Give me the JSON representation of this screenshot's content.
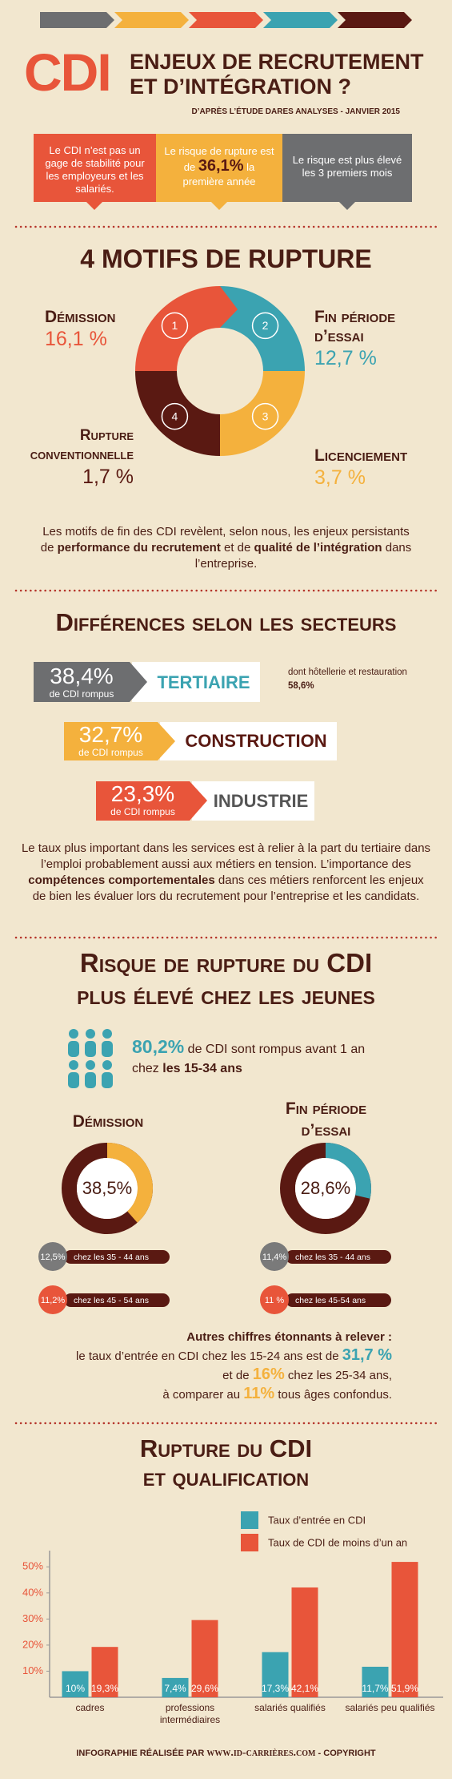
{
  "header": {
    "logo": "CDI",
    "title": [
      "ENJEUX DE RECRUTEMENT",
      "ET D’INTÉGRATION ?"
    ],
    "source": "D’APRÈS L’ÉTUDE DARES ANALYSES - JANVIER 2015"
  },
  "summary": [
    [
      "Le CDI n’est pas un gage de stabilité pour les employeurs et les salariés."
    ],
    [
      "Le risque de rupture est de",
      "36,1%",
      "la première année"
    ],
    [
      "Le risque est plus élevé les 3 premiers mois"
    ]
  ],
  "motifs": {
    "title": "4 MOTIFS DE RUPTURE",
    "items": [
      {
        "number": "1",
        "label": "Démission",
        "value": "16,1 %"
      },
      {
        "number": "2",
        "label": "Fin période d’essai",
        "value": "12,7 %"
      },
      {
        "number": "3",
        "label": "Licenciement",
        "value": "3,7 %"
      },
      {
        "number": "4",
        "label": "Rupture conventionnelle",
        "value": "1,7 %"
      }
    ],
    "note": [
      "Les motifs de fin des CDI revèlent, selon nous, les enjeux persistants de",
      "performance du recrutement",
      "et de",
      "qualité de l’intégration",
      "dans l’entreprise."
    ]
  },
  "secteurs": {
    "title": "Différences selon les secteurs",
    "rows": [
      {
        "share": "38,4%",
        "caption": "de CDI rompus",
        "sector": "TERTIAIRE",
        "note": [
          "dont hôtellerie et restauration",
          "58,6%"
        ]
      },
      {
        "share": "32,7%",
        "caption": "de CDI rompus",
        "sector": "CONSTRUCTION"
      },
      {
        "share": "23,3%",
        "caption": "de CDI rompus",
        "sector": "INDUSTRIE"
      }
    ],
    "note": [
      "Le taux plus important dans les services est à relier à la part du tertiaire dans l’emploi probablement aussi aux métiers en tension. L’importance des",
      "compétences comportementales",
      "dans ces métiers renforcent les enjeux de bien les évaluer lors du recrutement pour l’entreprise et les candidats."
    ]
  },
  "jeunes": {
    "title": [
      "Risque de rupture du CDI",
      "plus élevé chez les jeunes"
    ],
    "highlight": [
      "80,2%",
      "de CDI sont rompus avant 1 an chez",
      "les 15-34 ans"
    ],
    "groups": [
      {
        "bubbles": [
          {
            "value": "12,5%",
            "label": "chez les 35 - 44 ans"
          },
          {
            "value": "11,2%",
            "label": "chez les 45 - 54 ans"
          }
        ]
      },
      {
        "bubbles": [
          {
            "value": "11,4%",
            "label": "chez les 35 - 44 ans"
          },
          {
            "value": "11 %",
            "label": "chez les 45-54 ans"
          }
        ]
      }
    ],
    "extra": [
      "Autres chiffres étonnants à relever :",
      "le taux d’entrée en CDI chez les 15-24 ans est de",
      "31,7 %",
      "et de",
      "16%",
      "chez les 25-34 ans,",
      "à comparer au",
      "11%",
      "tous âges confondus."
    ]
  },
  "chart_data": [
    {
      "type": "pie",
      "title": "Démission",
      "values": [
        38.5
      ],
      "value_labels": [
        "38,5%"
      ],
      "color": "#f4b13d"
    },
    {
      "type": "pie",
      "title": "Fin période d’essai",
      "values": [
        28.6
      ],
      "value_labels": [
        "28,6%"
      ],
      "color": "#3ba3b1"
    },
    {
      "type": "bar",
      "title": [
        "Rupture du CDI",
        "et qualification"
      ],
      "categories": [
        "cadres",
        "professions intermédiaires",
        "salariés qualifiés",
        "salariés peu qualifiés"
      ],
      "series": [
        {
          "name": "Taux d’entrée en CDI",
          "color": "#3ba3b1",
          "values": [
            10,
            7.4,
            17.3,
            11.7
          ],
          "value_labels": [
            "10%",
            "7,4%",
            "17,3%",
            "11,7%"
          ]
        },
        {
          "name": "Taux de CDI de moins d’un an",
          "color": "#e8553a",
          "values": [
            19.3,
            29.6,
            42.1,
            51.9
          ],
          "value_labels": [
            "19,3%",
            "29,6%",
            "42,1%",
            "51,9%"
          ]
        }
      ],
      "ylim": [
        0,
        55
      ],
      "yticks": [
        {
          "value": 10,
          "label": "10%"
        },
        {
          "value": 20,
          "label": "20%"
        },
        {
          "value": 30,
          "label": "30%"
        },
        {
          "value": 40,
          "label": "40%"
        },
        {
          "value": 50,
          "label": "50%"
        }
      ]
    }
  ],
  "footer": [
    "INFOGRAPHIE RÉALISÉE PAR",
    "www.id-carrières.com",
    "- COPYRIGHT"
  ]
}
